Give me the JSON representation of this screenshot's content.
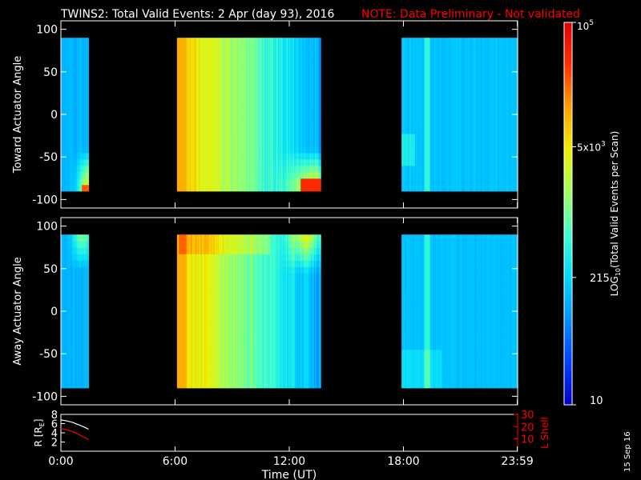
{
  "header": {
    "title": "TWINS2: Total Valid Events:  2 Apr (day  93), 2016",
    "note": "NOTE: Data Preliminary - Not validated"
  },
  "footer": {
    "date_stamp": "15 Sep 16"
  },
  "colors": {
    "background": "#000000",
    "foreground": "#ffffff",
    "note": "#ff0000",
    "l_shell": "#ff0000",
    "colorbar_stops": [
      "#0000c8",
      "#0040ff",
      "#0090ff",
      "#00d8ff",
      "#40ffd0",
      "#a0ff60",
      "#f0f000",
      "#ffa000",
      "#ff3000",
      "#e00000"
    ]
  },
  "chart_data": [
    {
      "type": "heatmap",
      "panel": "top",
      "ylabel": "Toward Actuator Angle",
      "xlim": [
        0,
        24
      ],
      "ylim": [
        -110,
        110
      ],
      "yticks": [
        -100,
        -50,
        0,
        50,
        100
      ],
      "ytick_labels": [
        "-100",
        "-50",
        "0",
        "50",
        "100"
      ],
      "data_ylim": [
        -90,
        90
      ],
      "segments": [
        {
          "t_start": 0.0,
          "t_end": 1.45
        },
        {
          "t_start": 6.1,
          "t_end": 13.65
        },
        {
          "t_start": 17.9,
          "t_end": 24.0
        }
      ]
    },
    {
      "type": "heatmap",
      "panel": "middle",
      "ylabel": "Away Actuator Angle",
      "xlim": [
        0,
        24
      ],
      "ylim": [
        -110,
        110
      ],
      "yticks": [
        -100,
        -50,
        0,
        50,
        100
      ],
      "ytick_labels": [
        "-100",
        "-50",
        "0",
        "50",
        "100"
      ],
      "data_ylim": [
        -90,
        90
      ],
      "segments": [
        {
          "t_start": 0.0,
          "t_end": 1.45
        },
        {
          "t_start": 6.1,
          "t_end": 13.65
        },
        {
          "t_start": 17.9,
          "t_end": 24.0
        }
      ]
    },
    {
      "type": "line",
      "panel": "bottom",
      "ylabel": "R [R",
      "ylabel_sub": "E",
      "ylabel_close": "]",
      "y2label": "L Shell",
      "ylim": [
        0,
        8
      ],
      "yticks": [
        2,
        4,
        6,
        8
      ],
      "ytick_labels": [
        "2",
        "4",
        "6",
        "8"
      ],
      "y2lim": [
        0,
        30
      ],
      "y2ticks": [
        10,
        20,
        30
      ],
      "y2tick_labels": [
        "10",
        "20",
        "30"
      ],
      "xlim": [
        0,
        24
      ],
      "xticks": [
        0,
        6,
        12,
        18,
        23.983
      ],
      "xtick_labels": [
        "0:00",
        "6:00",
        "12:00",
        "18:00",
        "23:59"
      ],
      "xlabel": "Time (UT)",
      "series": [
        {
          "axis": "left",
          "color": "#ffffff",
          "x": [
            0.0,
            0.3,
            0.6,
            0.9,
            1.2,
            1.45
          ],
          "y": [
            6.8,
            6.6,
            6.3,
            5.8,
            5.3,
            4.8
          ]
        },
        {
          "axis": "right",
          "color": "#ff0000",
          "x": [
            0.0,
            0.3,
            0.6,
            0.9,
            1.2,
            1.45
          ],
          "y": [
            18.5,
            17.5,
            16.0,
            14.0,
            11.5,
            9.5
          ]
        }
      ]
    },
    {
      "type": "colorbar",
      "label_prefix": "LOG",
      "label_sub": "10",
      "label_suffix": "(Total Valid  Events per Scan)",
      "ticks": [
        {
          "value": 10,
          "label": "10"
        },
        {
          "value": 215,
          "label": "215"
        },
        {
          "value": 5000,
          "label_base": "5x10",
          "label_sup": "3"
        },
        {
          "value": 100000,
          "label_base": "10",
          "label_sup": "5"
        }
      ],
      "range": [
        10,
        100000
      ],
      "log_scale": true
    }
  ]
}
